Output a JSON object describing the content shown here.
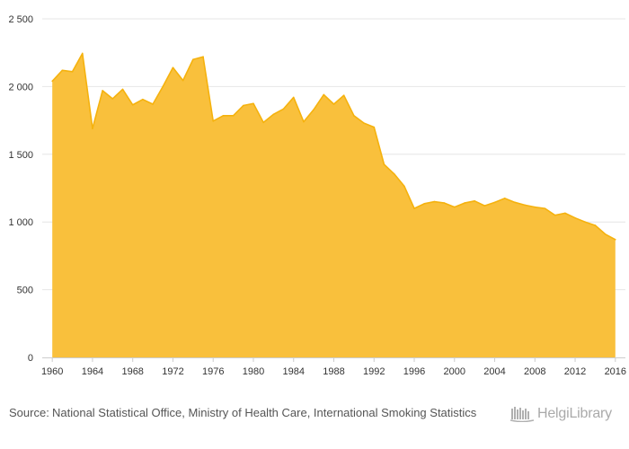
{
  "chart_data": {
    "type": "area",
    "title": "",
    "xlabel": "",
    "ylabel": "",
    "x": [
      1960,
      1961,
      1962,
      1963,
      1964,
      1965,
      1966,
      1967,
      1968,
      1969,
      1970,
      1971,
      1972,
      1973,
      1974,
      1975,
      1976,
      1977,
      1978,
      1979,
      1980,
      1981,
      1982,
      1983,
      1984,
      1985,
      1986,
      1987,
      1988,
      1989,
      1990,
      1991,
      1992,
      1993,
      1994,
      1995,
      1996,
      1997,
      1998,
      1999,
      2000,
      2001,
      2002,
      2003,
      2004,
      2005,
      2006,
      2007,
      2008,
      2009,
      2010,
      2011,
      2012,
      2013,
      2014,
      2015,
      2016
    ],
    "series": [
      {
        "name": "",
        "values": [
          2040,
          2120,
          2110,
          2245,
          1690,
          1970,
          1910,
          1980,
          1865,
          1905,
          1870,
          2000,
          2140,
          2045,
          2200,
          2220,
          1745,
          1785,
          1785,
          1860,
          1875,
          1735,
          1795,
          1835,
          1920,
          1740,
          1830,
          1940,
          1870,
          1935,
          1785,
          1730,
          1700,
          1425,
          1355,
          1265,
          1100,
          1135,
          1150,
          1140,
          1110,
          1140,
          1155,
          1120,
          1145,
          1175,
          1145,
          1125,
          1110,
          1100,
          1050,
          1065,
          1030,
          1000,
          975,
          910,
          870
        ]
      }
    ],
    "ylim": [
      0,
      2500
    ],
    "xlim": [
      1959,
      2017
    ],
    "y_ticks": [
      "2 500",
      "2 000",
      "1 500",
      "1 000",
      "500",
      "0"
    ],
    "y_tick_values": [
      2500,
      2000,
      1500,
      1000,
      500,
      0
    ],
    "x_ticks": [
      "1960",
      "1964",
      "1968",
      "1972",
      "1976",
      "1980",
      "1984",
      "1988",
      "1992",
      "1996",
      "2000",
      "2004",
      "2008",
      "2012",
      "2016"
    ],
    "grid": true,
    "legend": "none",
    "colors": {
      "fill": "#f9c03c",
      "line": "#f5b20e",
      "grid": "#e6e6e6",
      "axis": "#cccccc"
    }
  },
  "footer": {
    "source_label": "Source:",
    "source_text": "National Statistical Office, Ministry of Health Care, International Smoking Statistics",
    "brand_name": "HelgiLibrary",
    "brand_icon": "library-icon"
  }
}
